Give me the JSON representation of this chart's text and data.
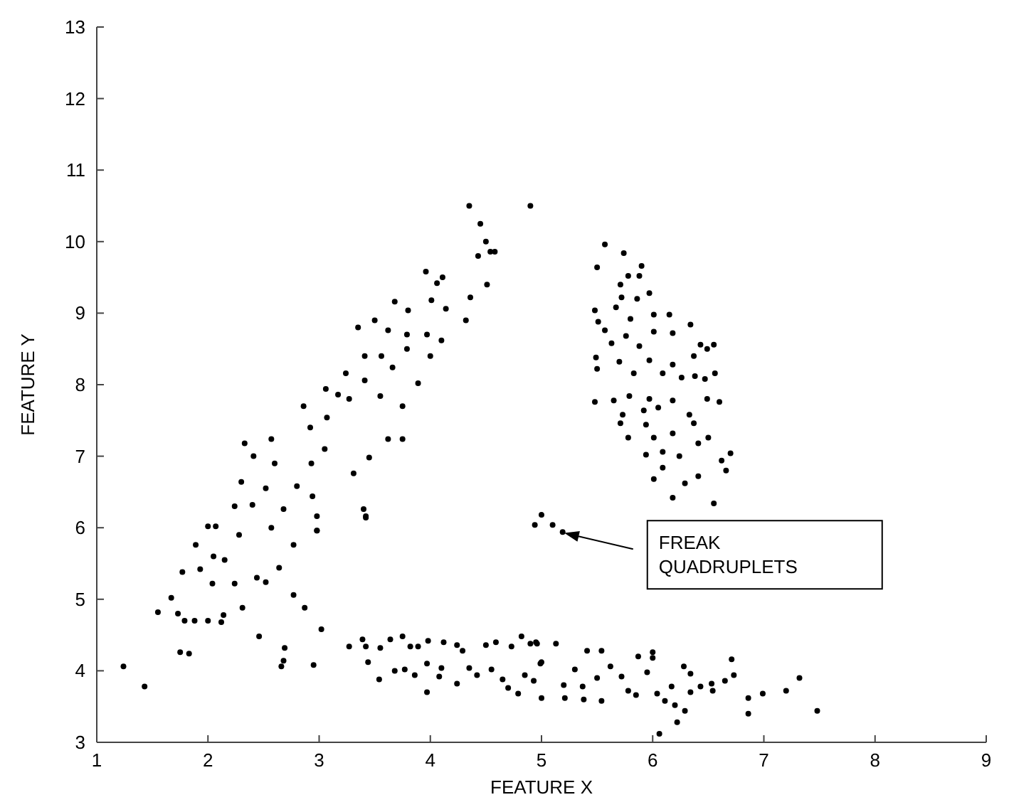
{
  "chart_data": {
    "type": "scatter",
    "xlabel": "FEATURE X",
    "ylabel": "FEATURE Y",
    "xlim": [
      1,
      9
    ],
    "ylim": [
      3,
      13
    ],
    "xticks": [
      1,
      2,
      3,
      4,
      5,
      6,
      7,
      8,
      9
    ],
    "yticks": [
      3,
      4,
      5,
      6,
      7,
      8,
      9,
      10,
      11,
      12,
      13
    ],
    "grid": false,
    "marker": "circle",
    "annotations": [
      "FREAK\nQUADRUPLETS"
    ],
    "series": [
      {
        "color": "#000000",
        "x": [
          4.43,
          4.54,
          4.58,
          3.96,
          4.11,
          4.06,
          4.51,
          4.36,
          4.01,
          3.68,
          3.8,
          4.14,
          4.32,
          3.5,
          3.35,
          3.62,
          3.79,
          3.79,
          3.97,
          4.1,
          4.0,
          3.41,
          3.56,
          3.66,
          3.89,
          3.41,
          3.24,
          3.06,
          3.17,
          3.27,
          3.55,
          3.75,
          3.75,
          3.62,
          3.45,
          3.31,
          2.86,
          3.07,
          2.92,
          2.57,
          2.33,
          2.41,
          2.6,
          2.93,
          3.05,
          2.8,
          2.52,
          2.94,
          2.3,
          2.24,
          2.4,
          2.68,
          3.4,
          3.42,
          2.0,
          2.07,
          2.28,
          2.57,
          1.89,
          2.98,
          2.98,
          2.98,
          3.42,
          2.05,
          1.93,
          1.77,
          2.04,
          2.24,
          2.15,
          2.44,
          2.52,
          2.64,
          2.77,
          2.77,
          2.87,
          2.31,
          1.67,
          1.55,
          1.73,
          1.79,
          1.88,
          2.0,
          2.12,
          2.14,
          1.75,
          1.83,
          1.24,
          1.43,
          2.46,
          2.69,
          2.66,
          2.68,
          2.95,
          3.02,
          4.35,
          4.45,
          4.9,
          4.5,
          3.27,
          3.39,
          3.42,
          3.44,
          3.55,
          3.54,
          3.64,
          3.75,
          3.82,
          3.89,
          3.68,
          3.77,
          3.86,
          3.98,
          3.97,
          3.97,
          4.12,
          4.08,
          4.1,
          4.24,
          4.29,
          4.24,
          4.35,
          4.42,
          4.5,
          4.59,
          4.55,
          4.65,
          4.7,
          4.73,
          4.82,
          4.79,
          4.9,
          4.85,
          4.96,
          4.99,
          4.93,
          5.0,
          4.95,
          5.13,
          5.0,
          5.2,
          5.21,
          5.3,
          5.41,
          5.54,
          5.37,
          5.38,
          5.54,
          5.5,
          5.62,
          5.72,
          5.87,
          5.85,
          5.78,
          5.95,
          6.0,
          6.0,
          6.04,
          6.11,
          6.17,
          6.2,
          6.22,
          6.28,
          6.29,
          6.34,
          6.34,
          6.43,
          6.53,
          6.54,
          6.65,
          6.71,
          6.73,
          6.86,
          6.86,
          6.99,
          7.2,
          7.32,
          7.48,
          6.06,
          4.94,
          5.0,
          5.1,
          5.19,
          5.57,
          5.74,
          5.5,
          5.9,
          5.78,
          5.88,
          5.71,
          5.97,
          5.72,
          5.86,
          5.48,
          5.51,
          5.67,
          6.01,
          6.15,
          6.34,
          5.57,
          5.8,
          5.76,
          5.88,
          6.01,
          6.18,
          6.43,
          6.55,
          6.49,
          5.63,
          5.7,
          5.49,
          5.5,
          5.97,
          6.18,
          6.37,
          5.83,
          6.09,
          6.26,
          6.38,
          6.56,
          6.47,
          5.48,
          5.65,
          5.79,
          5.97,
          6.18,
          6.49,
          6.6,
          5.73,
          5.92,
          6.05,
          6.33,
          5.71,
          5.94,
          6.37,
          5.78,
          6.01,
          6.18,
          6.5,
          5.94,
          6.09,
          6.24,
          6.41,
          6.7,
          6.62,
          6.66,
          6.41,
          6.09,
          6.01,
          6.29,
          6.18,
          6.55
        ],
        "values": [
          9.8,
          9.86,
          9.86,
          9.58,
          9.5,
          9.42,
          9.4,
          9.22,
          9.18,
          9.16,
          9.04,
          9.06,
          8.9,
          8.9,
          8.8,
          8.76,
          8.7,
          8.5,
          8.7,
          8.62,
          8.4,
          8.4,
          8.4,
          8.24,
          8.02,
          8.06,
          8.16,
          7.94,
          7.86,
          7.8,
          7.84,
          7.7,
          7.24,
          7.24,
          6.98,
          6.76,
          7.7,
          7.54,
          7.4,
          7.24,
          7.18,
          7.0,
          6.9,
          6.9,
          7.1,
          6.58,
          6.55,
          6.44,
          6.64,
          6.3,
          6.32,
          6.26,
          6.26,
          6.14,
          6.02,
          6.02,
          5.9,
          6.0,
          5.76,
          5.96,
          6.16,
          5.96,
          6.16,
          5.6,
          5.42,
          5.38,
          5.22,
          5.22,
          5.55,
          5.3,
          5.24,
          5.44,
          5.76,
          5.06,
          4.88,
          4.88,
          5.02,
          4.82,
          4.8,
          4.7,
          4.7,
          4.7,
          4.68,
          4.78,
          4.26,
          4.24,
          4.06,
          3.78,
          4.48,
          4.32,
          4.06,
          4.14,
          4.08,
          4.58,
          10.5,
          10.25,
          10.5,
          10.0,
          4.34,
          4.44,
          4.34,
          4.12,
          4.32,
          3.88,
          4.44,
          4.48,
          4.34,
          4.34,
          4.0,
          4.02,
          3.94,
          4.42,
          4.1,
          3.7,
          4.4,
          3.92,
          4.04,
          4.36,
          4.28,
          3.82,
          4.04,
          3.94,
          4.36,
          4.4,
          4.02,
          3.88,
          3.76,
          4.34,
          4.48,
          3.68,
          4.38,
          3.94,
          4.38,
          4.1,
          3.86,
          3.62,
          4.4,
          4.38,
          4.12,
          3.8,
          3.62,
          4.02,
          4.28,
          4.28,
          3.78,
          3.6,
          3.58,
          3.9,
          4.06,
          3.92,
          4.2,
          3.66,
          3.72,
          3.98,
          4.26,
          4.18,
          3.68,
          3.58,
          3.78,
          3.52,
          3.28,
          4.06,
          3.44,
          3.96,
          3.7,
          3.78,
          3.82,
          3.72,
          3.86,
          4.16,
          3.94,
          3.62,
          3.4,
          3.68,
          3.72,
          3.9,
          3.44,
          3.12,
          6.04,
          6.18,
          6.04,
          5.94,
          9.96,
          9.84,
          9.64,
          9.66,
          9.52,
          9.52,
          9.4,
          9.28,
          9.22,
          9.2,
          9.04,
          8.88,
          9.08,
          8.98,
          8.98,
          8.84,
          8.76,
          8.92,
          8.68,
          8.54,
          8.74,
          8.72,
          8.56,
          8.56,
          8.5,
          8.58,
          8.32,
          8.38,
          8.22,
          8.34,
          8.28,
          8.4,
          8.16,
          8.16,
          8.1,
          8.12,
          8.16,
          8.08,
          7.76,
          7.78,
          7.84,
          7.8,
          7.78,
          7.8,
          7.76,
          7.58,
          7.64,
          7.68,
          7.58,
          7.46,
          7.44,
          7.46,
          7.26,
          7.26,
          7.32,
          7.26,
          7.02,
          7.06,
          7.0,
          7.18,
          7.04,
          6.94,
          6.8,
          6.72,
          6.84,
          6.68,
          6.62,
          6.42,
          6.34
        ]
      }
    ]
  }
}
